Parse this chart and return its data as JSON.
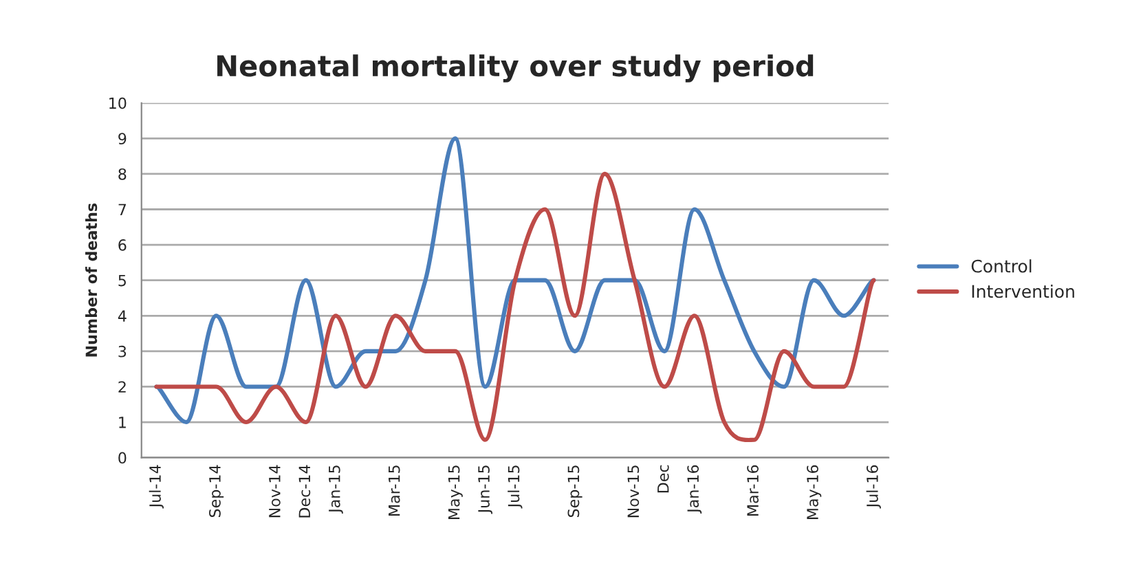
{
  "chart_data": {
    "type": "line",
    "title": "Neonatal mortality over study period",
    "ylabel": "Number of deaths",
    "categories": [
      "Jul-14",
      null,
      "Sep-14",
      null,
      "Nov-14",
      "Dec-14",
      "Jan-15",
      null,
      "Mar-15",
      null,
      "May-15",
      "Jun-15",
      "Jul-15",
      null,
      "Sep-15",
      null,
      "Nov-15",
      "Dec",
      "Jan-16",
      null,
      "Mar-16",
      null,
      "May-16",
      null,
      "Jul-16"
    ],
    "series": [
      {
        "name": "Control",
        "color": "#4a7ebb",
        "values": [
          2,
          1,
          4,
          2,
          2,
          5,
          2,
          3,
          3,
          5,
          9,
          2,
          5,
          5,
          3,
          5,
          5,
          3,
          7,
          5,
          3,
          2,
          5,
          4,
          5
        ]
      },
      {
        "name": "Intervention",
        "color": "#be4b48",
        "values": [
          2,
          2,
          2,
          1,
          2,
          1,
          4,
          2,
          4,
          3,
          3,
          0.5,
          5,
          7,
          4,
          8,
          5,
          2,
          4,
          1,
          0.5,
          3,
          2,
          2,
          5
        ]
      }
    ],
    "ylim": [
      0,
      10
    ],
    "yticks": [
      0,
      1,
      2,
      3,
      4,
      5,
      6,
      7,
      8,
      9,
      10
    ],
    "grid": "y",
    "legend": "right",
    "marker": "none",
    "line_style": "solid"
  }
}
